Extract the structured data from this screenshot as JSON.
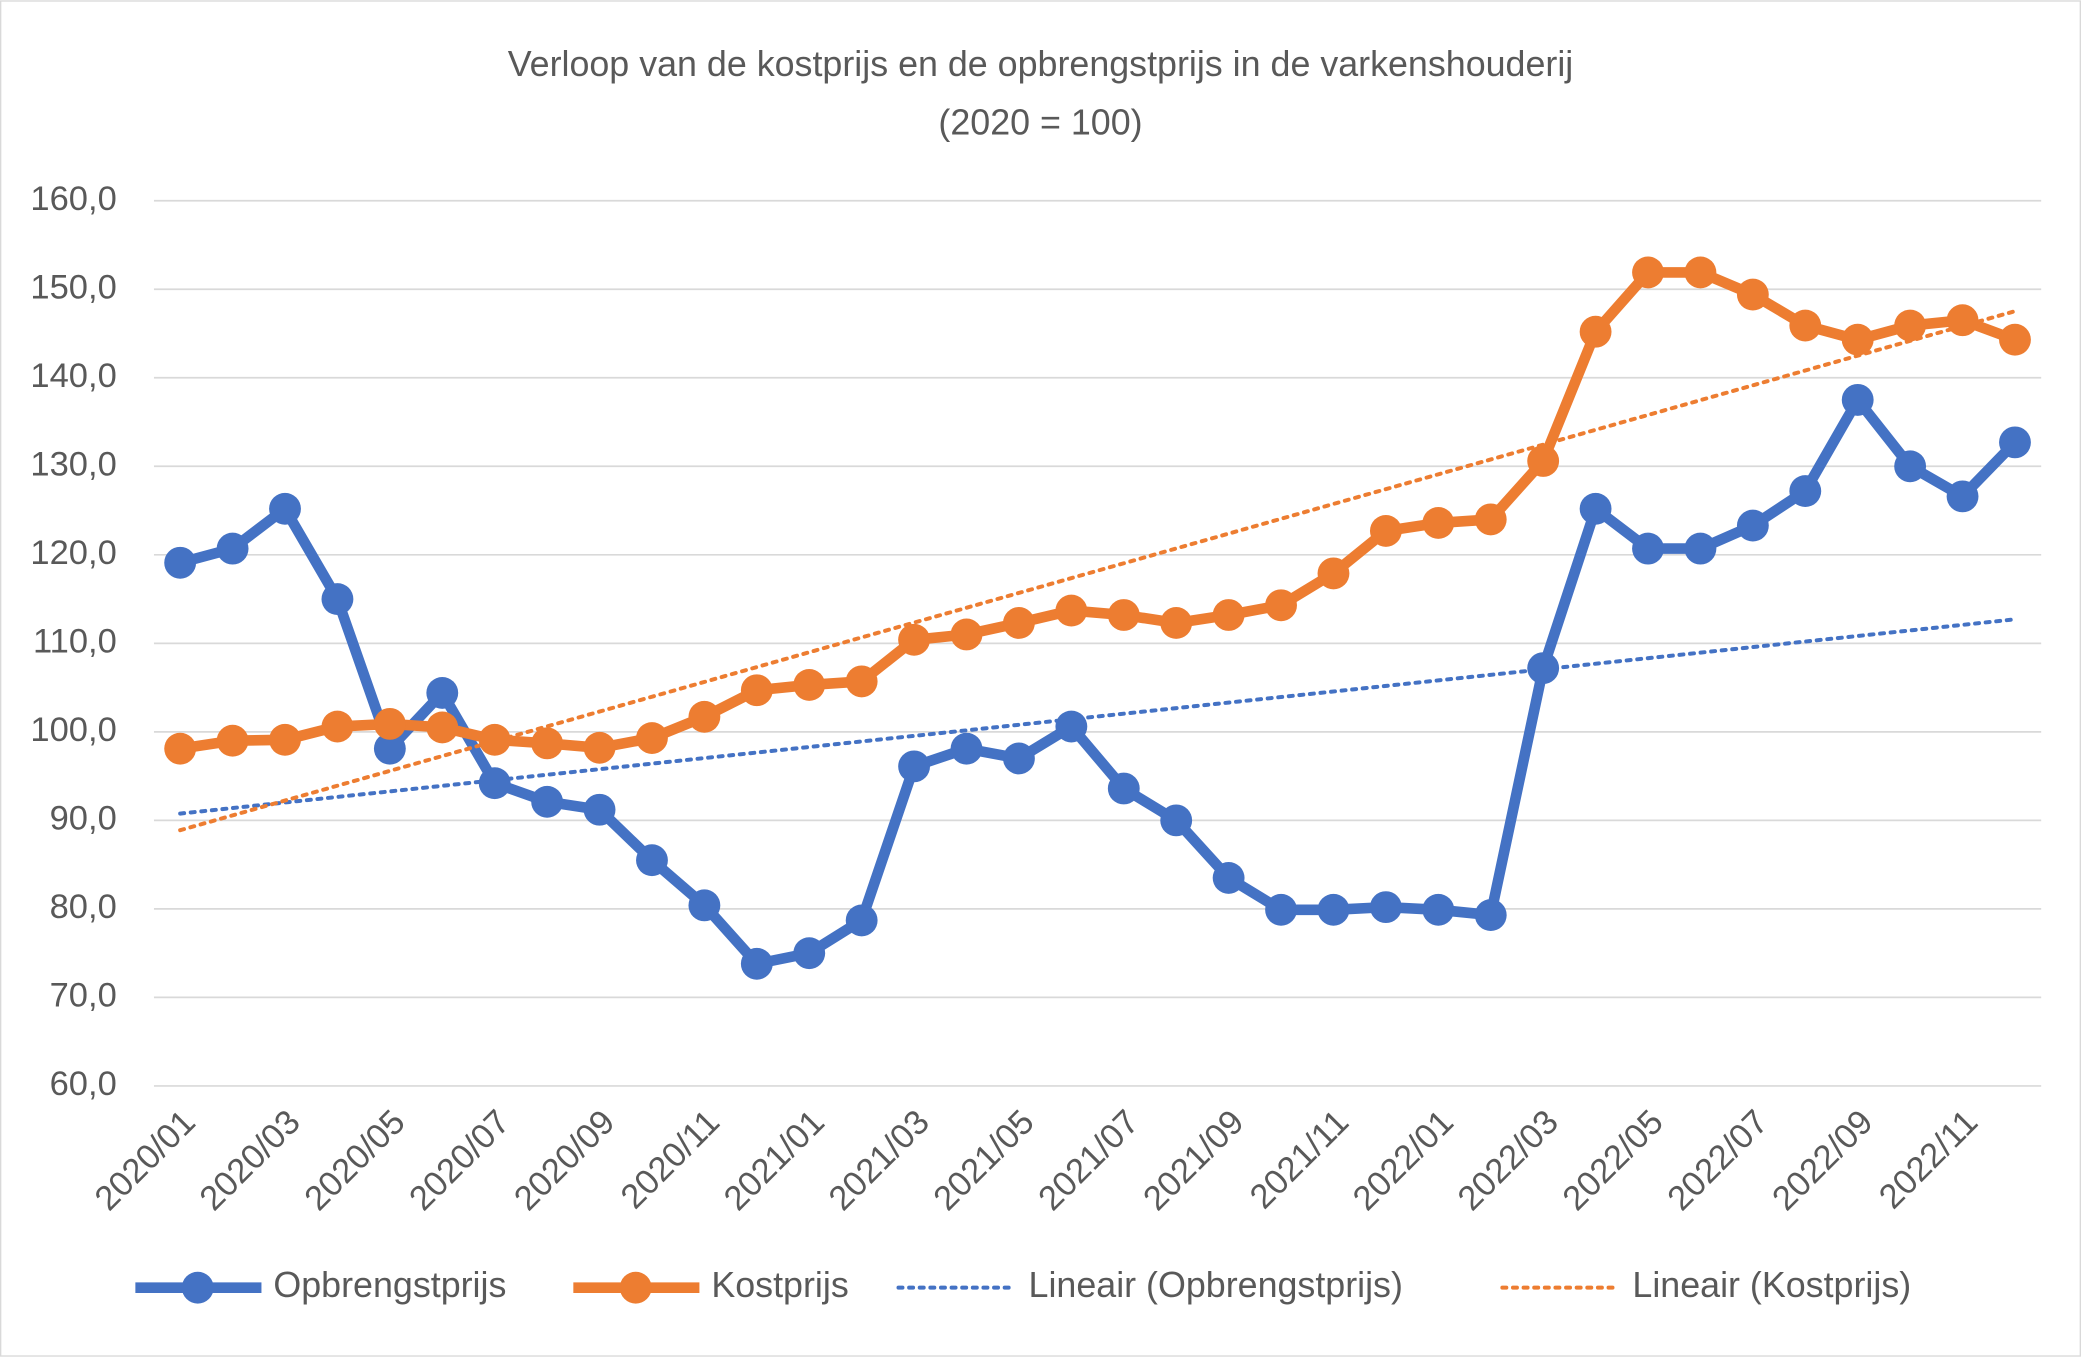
{
  "chart_data": {
    "type": "line",
    "title": "Verloop van de kostprijs en de opbrengstprijs in de varkenshouderij",
    "subtitle": "(2020 = 100)",
    "categories": [
      "2020/01",
      null,
      "2020/03",
      null,
      "2020/05",
      null,
      "2020/07",
      null,
      "2020/09",
      null,
      "2020/11",
      null,
      "2021/01",
      null,
      "2021/03",
      null,
      "2021/05",
      null,
      "2021/07",
      null,
      "2021/09",
      null,
      "2021/11",
      null,
      "2022/01",
      null,
      "2022/03",
      null,
      "2022/05",
      null,
      "2022/07",
      null,
      "2022/09",
      null,
      "2022/11",
      null
    ],
    "series": [
      {
        "name": "Opbrengstprijs",
        "color": "#4472c4",
        "values": [
          119.1,
          120.7,
          125.2,
          115.0,
          98.1,
          104.4,
          94.2,
          92.1,
          91.2,
          85.5,
          80.4,
          73.8,
          75.0,
          78.7,
          96.1,
          98.1,
          97.0,
          100.6,
          93.6,
          90.0,
          83.5,
          79.9,
          79.9,
          80.2,
          79.9,
          79.3,
          107.2,
          125.2,
          120.7,
          120.7,
          123.3,
          127.2,
          137.5,
          130.0,
          126.6,
          132.7
        ],
        "trendline": {
          "name": "Lineair (Opbrengstprijs)",
          "style": "dotted"
        }
      },
      {
        "name": "Kostprijs",
        "color": "#ed7d31",
        "values": [
          98.1,
          99.0,
          99.1,
          100.6,
          100.9,
          100.5,
          99.1,
          98.7,
          98.2,
          99.3,
          101.7,
          104.7,
          105.3,
          105.7,
          110.4,
          111.0,
          112.3,
          113.7,
          113.2,
          112.3,
          113.2,
          114.3,
          117.9,
          122.7,
          123.6,
          124.0,
          130.6,
          145.2,
          151.9,
          151.9,
          149.4,
          145.9,
          144.3,
          145.9,
          146.5,
          144.3
        ],
        "trendline": {
          "name": "Lineair (Kostprijs)",
          "style": "dotted"
        }
      }
    ],
    "ylim": [
      60,
      160
    ],
    "yticks": [
      {
        "value": 60,
        "label": "60,0"
      },
      {
        "value": 70,
        "label": "70,0"
      },
      {
        "value": 80,
        "label": "80,0"
      },
      {
        "value": 90,
        "label": "90,0"
      },
      {
        "value": 100,
        "label": "100,0"
      },
      {
        "value": 110,
        "label": "110,0"
      },
      {
        "value": 120,
        "label": "120,0"
      },
      {
        "value": 130,
        "label": "130,0"
      },
      {
        "value": 140,
        "label": "140,0"
      },
      {
        "value": 150,
        "label": "150,0"
      },
      {
        "value": 160,
        "label": "160,0"
      }
    ],
    "grid": true,
    "legend": "bottom"
  }
}
